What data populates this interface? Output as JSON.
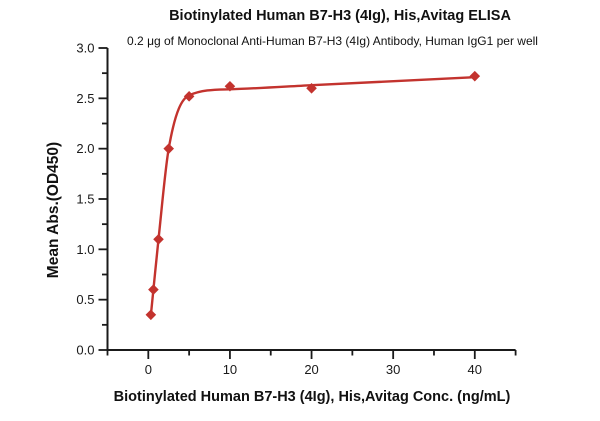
{
  "chart_data": {
    "type": "scatter",
    "title": "Biotinylated Human B7-H3 (4Ig), His,Avitag ELISA",
    "subtitle": "0.2 μg of Monoclonal Anti-Human B7-H3 (4Ig) Antibody, Human IgG1 per well",
    "xlabel": "Biotinylated Human B7-H3 (4Ig), His,Avitag Conc. (ng/mL)",
    "ylabel": "Mean Abs.(OD450)",
    "x": [
      0.3125,
      0.625,
      1.25,
      2.5,
      5,
      10,
      20,
      40
    ],
    "y": [
      0.35,
      0.6,
      1.1,
      2.0,
      2.52,
      2.62,
      2.6,
      2.72
    ],
    "fit_curve": {
      "x": [
        0.3125,
        0.625,
        1.25,
        2.5,
        5,
        10,
        20,
        40
      ],
      "y": [
        0.35,
        0.6,
        1.1,
        2.0,
        2.53,
        2.59,
        2.63,
        2.71
      ]
    },
    "xlim": [
      -5,
      45
    ],
    "ylim": [
      0,
      3
    ],
    "x_major_ticks": [
      0,
      10,
      20,
      30,
      40
    ],
    "x_minor_ticks": [
      -5,
      5,
      15,
      25,
      35,
      45
    ],
    "y_major_ticks": [
      0.0,
      0.5,
      1.0,
      1.5,
      2.0,
      2.5,
      3.0
    ],
    "y_minor_ticks": [
      0.25,
      0.75,
      1.25,
      1.75,
      2.25,
      2.75
    ],
    "marker": "diamond",
    "grid": false,
    "legend": "none",
    "colors": {
      "series": "#c3332e",
      "axis": "#1a1a1a"
    }
  }
}
